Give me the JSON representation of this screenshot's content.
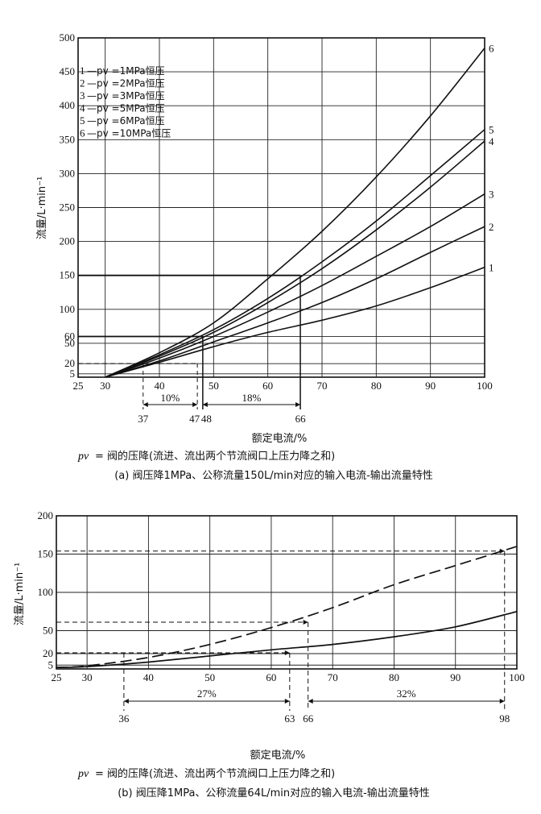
{
  "chart_data": [
    {
      "type": "line",
      "id": "a",
      "ylabel": "流量/L·min⁻¹",
      "xlabel": "额定电流/%",
      "xlim": [
        25,
        100
      ],
      "ylim": [
        0,
        500
      ],
      "x_ticks": [
        25,
        30,
        40,
        50,
        60,
        70,
        80,
        90,
        100
      ],
      "y_ticks": [
        5,
        20,
        50,
        60,
        100,
        150,
        200,
        250,
        300,
        350,
        400,
        450,
        500
      ],
      "legend": [
        {
          "num": "1",
          "text": "—pv =1MPa恒压"
        },
        {
          "num": "2",
          "text": "—pv =2MPa恒压"
        },
        {
          "num": "3",
          "text": "—pv =3MPa恒压"
        },
        {
          "num": "4",
          "text": "—pv =5MPa恒压"
        },
        {
          "num": "5",
          "text": "—pv =6MPa恒压"
        },
        {
          "num": "6",
          "text": "—pv =10MPa恒压"
        }
      ],
      "series": [
        {
          "name": "1",
          "x": [
            30,
            40,
            50,
            60,
            70,
            80,
            90,
            100
          ],
          "y": [
            0,
            22,
            45,
            66,
            84,
            105,
            132,
            162
          ]
        },
        {
          "name": "2",
          "x": [
            30,
            40,
            50,
            60,
            70,
            80,
            90,
            100
          ],
          "y": [
            0,
            24,
            52,
            80,
            110,
            145,
            184,
            222
          ]
        },
        {
          "name": "3",
          "x": [
            30,
            40,
            50,
            60,
            70,
            80,
            90,
            100
          ],
          "y": [
            0,
            28,
            60,
            96,
            135,
            178,
            222,
            270
          ]
        },
        {
          "name": "4",
          "x": [
            30,
            40,
            50,
            60,
            70,
            80,
            90,
            100
          ],
          "y": [
            0,
            31,
            66,
            110,
            160,
            217,
            280,
            348
          ]
        },
        {
          "name": "5",
          "x": [
            30,
            40,
            50,
            60,
            70,
            80,
            90,
            100
          ],
          "y": [
            0,
            33,
            70,
            116,
            170,
            230,
            297,
            365
          ]
        },
        {
          "name": "6",
          "x": [
            30,
            40,
            50,
            60,
            70,
            80,
            90,
            100
          ],
          "y": [
            0,
            36,
            80,
            145,
            215,
            295,
            385,
            485
          ]
        }
      ],
      "guides": {
        "solid_h": [
          {
            "y": 150,
            "x_to": 66
          },
          {
            "y": 60,
            "x_to": 48
          }
        ],
        "dashed_h": [
          {
            "y": 20,
            "x_to": 47
          }
        ],
        "solid_v": [
          48,
          66
        ],
        "dashed_v": [
          37,
          47
        ]
      },
      "bottom_ticks": [
        "37",
        "47",
        "48",
        "66"
      ],
      "bottom_ticks_x": [
        37,
        47,
        48,
        66
      ],
      "spans": [
        {
          "label": "10%",
          "from": 37,
          "to": 47
        },
        {
          "label": "18%",
          "from": 48,
          "to": 66
        }
      ],
      "note_symbol": "pv",
      "note": "= 阀的压降(流进、流出两个节流阀口上压力降之和)",
      "caption": "(a)  阀压降1MPa、公称流量150L/min对应的输入电流-输出流量特性"
    },
    {
      "type": "line",
      "id": "b",
      "ylabel": "流量/L·min⁻¹",
      "xlabel": "额定电流/%",
      "xlim": [
        25,
        100
      ],
      "ylim": [
        0,
        200
      ],
      "x_ticks": [
        25,
        30,
        40,
        50,
        60,
        70,
        80,
        90,
        100
      ],
      "y_ticks": [
        5,
        20,
        50,
        100,
        150,
        200
      ],
      "series": [
        {
          "name": "solid",
          "style": "solid",
          "x": [
            25,
            30,
            40,
            50,
            60,
            70,
            80,
            90,
            100
          ],
          "y": [
            2,
            3,
            9,
            17,
            25,
            32,
            42,
            55,
            75
          ]
        },
        {
          "name": "dashed",
          "style": "dashed",
          "x": [
            25,
            30,
            40,
            50,
            60,
            70,
            80,
            90,
            100
          ],
          "y": [
            2,
            4,
            15,
            32,
            54,
            80,
            110,
            135,
            160
          ]
        }
      ],
      "guides": {
        "dashed_h": [
          {
            "y": 154,
            "x_to": 98
          },
          {
            "y": 61,
            "x_to": 66
          },
          {
            "y": 21,
            "x_to": 63
          }
        ],
        "dashed_v": [
          36,
          63,
          66,
          98
        ]
      },
      "bottom_ticks": [
        "36",
        "63",
        "66",
        "98"
      ],
      "bottom_ticks_x": [
        36,
        63,
        66,
        98
      ],
      "spans": [
        {
          "label": "27%",
          "from": 36,
          "to": 63
        },
        {
          "label": "32%",
          "from": 66,
          "to": 98
        }
      ],
      "note_symbol": "pv",
      "note": "= 阀的压降(流进、流出两个节流阀口上压力降之和)",
      "caption": "(b)  阀压降1MPa、公称流量64L/min对应的输入电流-输出流量特性"
    }
  ]
}
